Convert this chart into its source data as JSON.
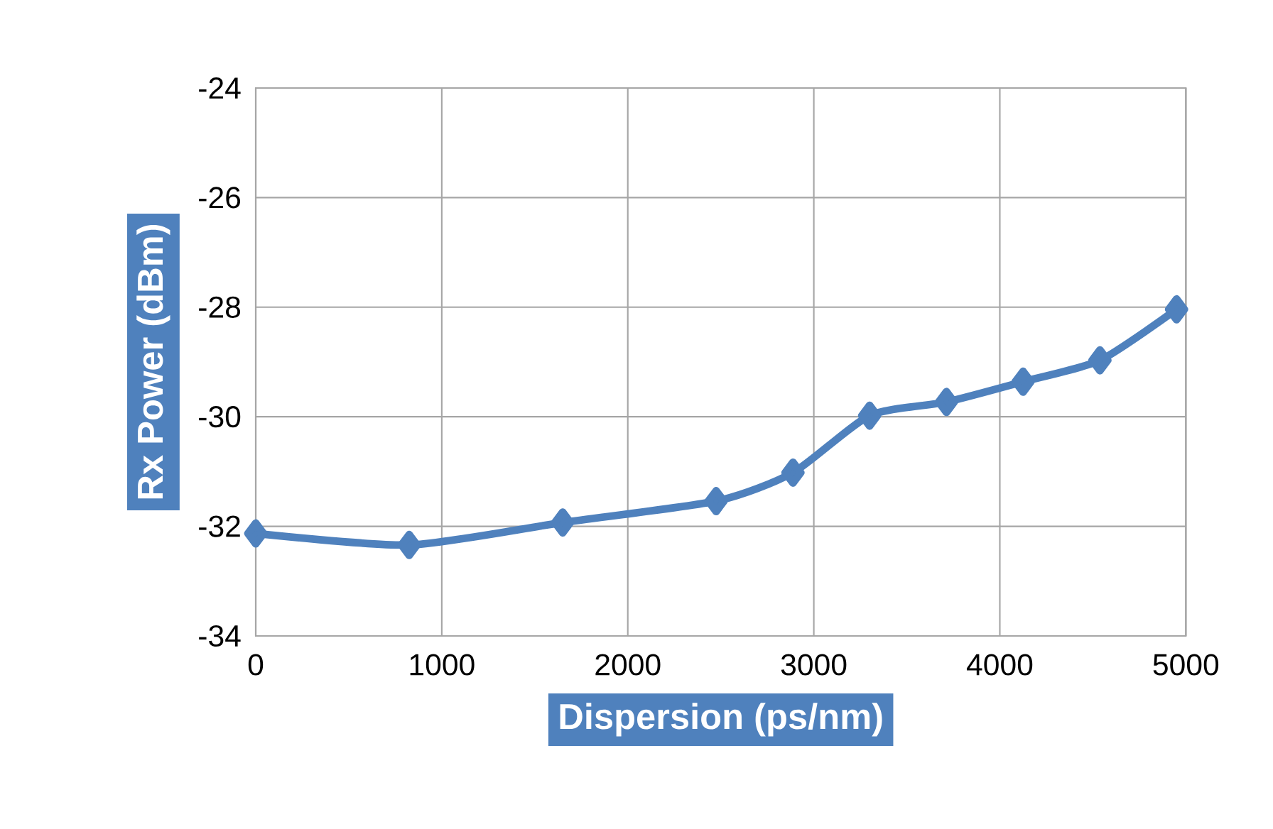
{
  "chart_data": {
    "type": "line",
    "xlabel": "Dispersion (ps/nm)",
    "ylabel": "Rx Power (dBm)",
    "x": [
      0,
      825,
      1650,
      2475,
      2888,
      3300,
      3713,
      4125,
      4538,
      4950
    ],
    "series": [
      {
        "color": "#4f81bd",
        "values": [
          -32.13,
          -32.34,
          -31.93,
          -31.54,
          -31.02,
          -29.98,
          -29.73,
          -29.36,
          -28.97,
          -28.04
        ]
      }
    ],
    "xlim": [
      0,
      5000
    ],
    "xticks": [
      0,
      1000,
      2000,
      3000,
      4000,
      5000
    ],
    "ylim": [
      -34,
      -24
    ],
    "yticks": [
      -34,
      -32,
      -30,
      -28,
      -26,
      -24
    ],
    "grid": true,
    "marker": "diamond",
    "line_style": "solid"
  }
}
